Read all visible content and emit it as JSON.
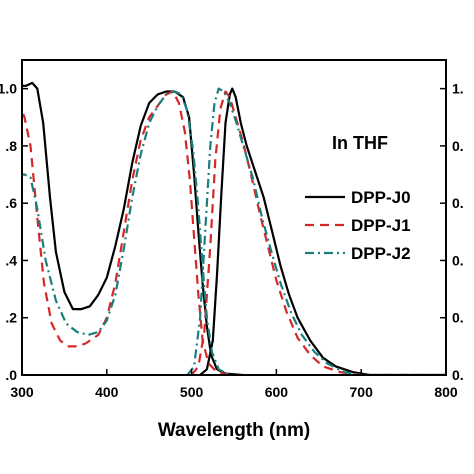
{
  "chart_data": {
    "type": "line",
    "title": "",
    "xlabel": "Wavelength  (nm)",
    "ylabel": "",
    "xlim": [
      300,
      800
    ],
    "ylim": [
      0.0,
      1.1
    ],
    "x_ticks": [
      "300",
      "400",
      "500",
      "600",
      "700",
      "800"
    ],
    "y_ticks_left": [
      ".0",
      ".2",
      ".4",
      ".6",
      ".8",
      "1.0"
    ],
    "y_ticks_right": [
      "0.",
      "0.",
      "0.",
      "0.",
      "0.",
      "1."
    ],
    "annotation": "In THF",
    "legend": {
      "placement": "right",
      "entries": [
        "DPP-J0",
        "DPP-J1",
        "DPP-J2"
      ]
    },
    "series": [
      {
        "name": "DPP-J0",
        "kind": "absorption",
        "color": "#000000",
        "dash": "solid",
        "points": [
          [
            295,
            1.01
          ],
          [
            305,
            1.01
          ],
          [
            312,
            1.02
          ],
          [
            318,
            1.0
          ],
          [
            325,
            0.88
          ],
          [
            333,
            0.62
          ],
          [
            340,
            0.43
          ],
          [
            350,
            0.29
          ],
          [
            360,
            0.23
          ],
          [
            370,
            0.23
          ],
          [
            380,
            0.24
          ],
          [
            390,
            0.28
          ],
          [
            400,
            0.34
          ],
          [
            410,
            0.45
          ],
          [
            420,
            0.58
          ],
          [
            430,
            0.74
          ],
          [
            440,
            0.87
          ],
          [
            450,
            0.95
          ],
          [
            460,
            0.98
          ],
          [
            470,
            0.99
          ],
          [
            480,
            0.99
          ],
          [
            490,
            0.97
          ],
          [
            497,
            0.9
          ],
          [
            503,
            0.7
          ],
          [
            508,
            0.5
          ],
          [
            513,
            0.32
          ],
          [
            518,
            0.17
          ],
          [
            523,
            0.07
          ],
          [
            530,
            0.02
          ],
          [
            540,
            0.005
          ],
          [
            560,
            0.0
          ]
        ]
      },
      {
        "name": "DPP-J0",
        "kind": "emission",
        "color": "#000000",
        "dash": "solid",
        "points": [
          [
            510,
            0.0
          ],
          [
            518,
            0.02
          ],
          [
            525,
            0.12
          ],
          [
            530,
            0.35
          ],
          [
            535,
            0.63
          ],
          [
            540,
            0.88
          ],
          [
            545,
            0.98
          ],
          [
            548,
            1.0
          ],
          [
            552,
            0.97
          ],
          [
            558,
            0.88
          ],
          [
            565,
            0.8
          ],
          [
            575,
            0.71
          ],
          [
            585,
            0.62
          ],
          [
            595,
            0.5
          ],
          [
            605,
            0.38
          ],
          [
            615,
            0.28
          ],
          [
            625,
            0.2
          ],
          [
            640,
            0.12
          ],
          [
            655,
            0.06
          ],
          [
            670,
            0.03
          ],
          [
            690,
            0.01
          ],
          [
            710,
            0.0
          ],
          [
            800,
            0.0
          ]
        ]
      },
      {
        "name": "DPP-J1",
        "kind": "absorption",
        "color": "#d62728",
        "dash": "dashed",
        "points": [
          [
            295,
            0.96
          ],
          [
            303,
            0.9
          ],
          [
            310,
            0.8
          ],
          [
            318,
            0.55
          ],
          [
            326,
            0.32
          ],
          [
            335,
            0.18
          ],
          [
            345,
            0.12
          ],
          [
            355,
            0.1
          ],
          [
            365,
            0.1
          ],
          [
            375,
            0.11
          ],
          [
            390,
            0.14
          ],
          [
            400,
            0.2
          ],
          [
            410,
            0.32
          ],
          [
            420,
            0.5
          ],
          [
            430,
            0.68
          ],
          [
            440,
            0.82
          ],
          [
            450,
            0.9
          ],
          [
            460,
            0.94
          ],
          [
            470,
            0.98
          ],
          [
            478,
            0.99
          ],
          [
            485,
            0.95
          ],
          [
            492,
            0.85
          ],
          [
            498,
            0.68
          ],
          [
            503,
            0.48
          ],
          [
            508,
            0.28
          ],
          [
            513,
            0.12
          ],
          [
            520,
            0.04
          ],
          [
            530,
            0.01
          ],
          [
            545,
            0.0
          ]
        ]
      },
      {
        "name": "DPP-J1",
        "kind": "emission",
        "color": "#d62728",
        "dash": "dashed",
        "points": [
          [
            500,
            0.0
          ],
          [
            508,
            0.03
          ],
          [
            515,
            0.15
          ],
          [
            522,
            0.45
          ],
          [
            528,
            0.75
          ],
          [
            534,
            0.93
          ],
          [
            540,
            0.99
          ],
          [
            545,
            0.97
          ],
          [
            552,
            0.9
          ],
          [
            560,
            0.82
          ],
          [
            570,
            0.7
          ],
          [
            580,
            0.57
          ],
          [
            590,
            0.45
          ],
          [
            600,
            0.33
          ],
          [
            612,
            0.22
          ],
          [
            625,
            0.13
          ],
          [
            640,
            0.07
          ],
          [
            655,
            0.03
          ],
          [
            675,
            0.01
          ],
          [
            700,
            0.0
          ],
          [
            800,
            0.0
          ]
        ]
      },
      {
        "name": "DPP-J2",
        "kind": "absorption",
        "color": "#1a7f7f",
        "dash": "dashdot",
        "points": [
          [
            295,
            0.7
          ],
          [
            303,
            0.7
          ],
          [
            310,
            0.69
          ],
          [
            318,
            0.58
          ],
          [
            328,
            0.4
          ],
          [
            340,
            0.26
          ],
          [
            352,
            0.18
          ],
          [
            365,
            0.15
          ],
          [
            378,
            0.14
          ],
          [
            390,
            0.15
          ],
          [
            400,
            0.19
          ],
          [
            410,
            0.28
          ],
          [
            420,
            0.44
          ],
          [
            430,
            0.62
          ],
          [
            440,
            0.77
          ],
          [
            450,
            0.88
          ],
          [
            460,
            0.94
          ],
          [
            470,
            0.98
          ],
          [
            480,
            0.99
          ],
          [
            488,
            0.98
          ],
          [
            495,
            0.92
          ],
          [
            502,
            0.78
          ],
          [
            508,
            0.58
          ],
          [
            513,
            0.38
          ],
          [
            518,
            0.2
          ],
          [
            524,
            0.08
          ],
          [
            532,
            0.02
          ],
          [
            545,
            0.0
          ]
        ]
      },
      {
        "name": "DPP-J2",
        "kind": "emission",
        "color": "#1a7f7f",
        "dash": "dashdot",
        "points": [
          [
            495,
            0.0
          ],
          [
            503,
            0.03
          ],
          [
            510,
            0.2
          ],
          [
            516,
            0.5
          ],
          [
            522,
            0.8
          ],
          [
            527,
            0.95
          ],
          [
            532,
            1.0
          ],
          [
            538,
            0.99
          ],
          [
            545,
            0.95
          ],
          [
            553,
            0.88
          ],
          [
            563,
            0.78
          ],
          [
            573,
            0.68
          ],
          [
            583,
            0.55
          ],
          [
            595,
            0.42
          ],
          [
            605,
            0.32
          ],
          [
            617,
            0.22
          ],
          [
            630,
            0.14
          ],
          [
            645,
            0.08
          ],
          [
            660,
            0.04
          ],
          [
            680,
            0.01
          ],
          [
            700,
            0.0
          ],
          [
            800,
            0.0
          ]
        ]
      }
    ]
  }
}
